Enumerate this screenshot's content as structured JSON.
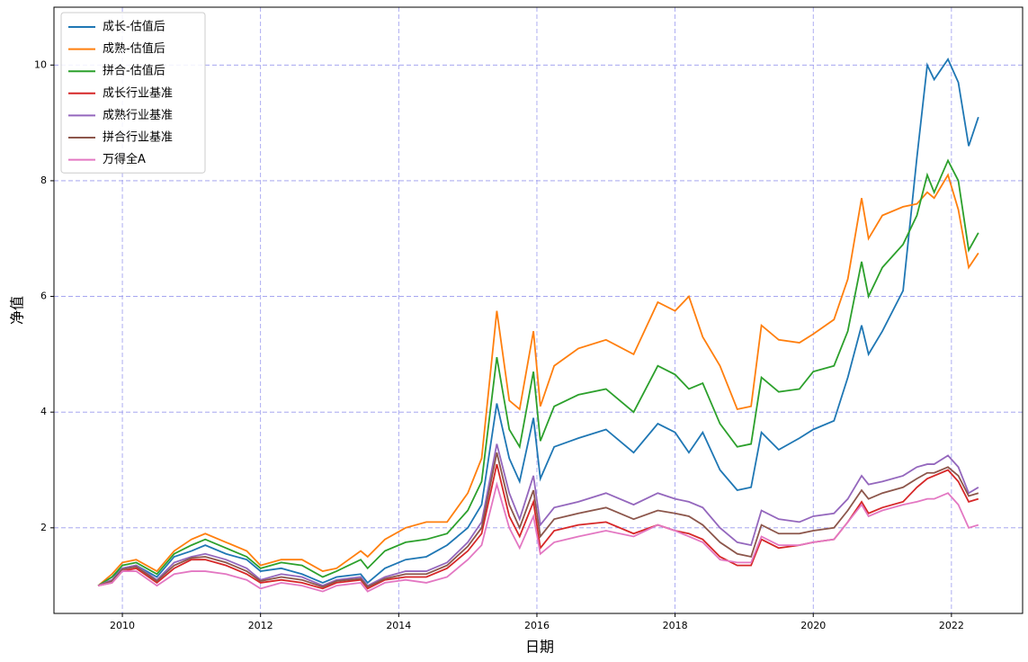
{
  "chart_data": {
    "type": "line",
    "x": [
      2009.65,
      2009.85,
      2010.0,
      2010.2,
      2010.5,
      2010.75,
      2011.0,
      2011.2,
      2011.5,
      2011.8,
      2012.0,
      2012.3,
      2012.6,
      2012.9,
      2013.1,
      2013.45,
      2013.55,
      2013.8,
      2014.1,
      2014.4,
      2014.7,
      2015.0,
      2015.2,
      2015.42,
      2015.6,
      2015.75,
      2015.95,
      2016.05,
      2016.25,
      2016.6,
      2017.0,
      2017.4,
      2017.75,
      2018.0,
      2018.2,
      2018.4,
      2018.65,
      2018.9,
      2019.1,
      2019.25,
      2019.5,
      2019.8,
      2020.0,
      2020.3,
      2020.5,
      2020.7,
      2020.8,
      2021.0,
      2021.3,
      2021.5,
      2021.65,
      2021.75,
      2021.95,
      2022.1,
      2022.25,
      2022.39
    ],
    "series": [
      {
        "name": "成长-估值后",
        "color": "#1f77b4",
        "values": [
          1.0,
          1.15,
          1.3,
          1.35,
          1.15,
          1.5,
          1.6,
          1.7,
          1.55,
          1.45,
          1.25,
          1.3,
          1.2,
          1.05,
          1.15,
          1.2,
          1.05,
          1.3,
          1.45,
          1.5,
          1.7,
          2.0,
          2.4,
          4.15,
          3.2,
          2.8,
          3.9,
          2.85,
          3.4,
          3.55,
          3.7,
          3.3,
          3.8,
          3.65,
          3.3,
          3.65,
          3.0,
          2.65,
          2.7,
          3.65,
          3.35,
          3.55,
          3.7,
          3.85,
          4.6,
          5.5,
          5.0,
          5.4,
          6.1,
          8.4,
          10.0,
          9.75,
          10.1,
          9.7,
          8.6,
          9.1
        ]
      },
      {
        "name": "成熟-估值后",
        "color": "#ff7f0e",
        "values": [
          1.0,
          1.2,
          1.4,
          1.45,
          1.25,
          1.6,
          1.8,
          1.9,
          1.75,
          1.6,
          1.35,
          1.45,
          1.45,
          1.25,
          1.3,
          1.6,
          1.5,
          1.8,
          2.0,
          2.1,
          2.1,
          2.6,
          3.2,
          5.75,
          4.2,
          4.05,
          5.4,
          4.1,
          4.8,
          5.1,
          5.25,
          5.0,
          5.9,
          5.75,
          6.0,
          5.3,
          4.8,
          4.05,
          4.1,
          5.5,
          5.25,
          5.2,
          5.35,
          5.6,
          6.3,
          7.7,
          7.0,
          7.4,
          7.55,
          7.6,
          7.8,
          7.7,
          8.1,
          7.5,
          6.5,
          6.75
        ]
      },
      {
        "name": "拼合-估值后",
        "color": "#2ca02c",
        "values": [
          1.0,
          1.15,
          1.35,
          1.4,
          1.2,
          1.55,
          1.7,
          1.8,
          1.65,
          1.5,
          1.3,
          1.4,
          1.35,
          1.15,
          1.25,
          1.45,
          1.3,
          1.6,
          1.75,
          1.8,
          1.9,
          2.3,
          2.8,
          4.95,
          3.7,
          3.4,
          4.7,
          3.5,
          4.1,
          4.3,
          4.4,
          4.0,
          4.8,
          4.65,
          4.4,
          4.5,
          3.8,
          3.4,
          3.45,
          4.6,
          4.35,
          4.4,
          4.7,
          4.8,
          5.4,
          6.6,
          6.0,
          6.5,
          6.9,
          7.4,
          8.1,
          7.8,
          8.35,
          8.0,
          6.8,
          7.1
        ]
      },
      {
        "name": "成长行业基准",
        "color": "#d62728",
        "values": [
          1.0,
          1.05,
          1.25,
          1.3,
          1.05,
          1.3,
          1.45,
          1.45,
          1.35,
          1.2,
          1.05,
          1.1,
          1.05,
          0.95,
          1.05,
          1.1,
          0.95,
          1.1,
          1.15,
          1.15,
          1.3,
          1.6,
          1.9,
          3.1,
          2.2,
          1.85,
          2.45,
          1.65,
          1.95,
          2.05,
          2.1,
          1.9,
          2.05,
          1.95,
          1.9,
          1.8,
          1.5,
          1.35,
          1.35,
          1.8,
          1.65,
          1.7,
          1.75,
          1.8,
          2.1,
          2.45,
          2.25,
          2.35,
          2.45,
          2.7,
          2.85,
          2.9,
          3.0,
          2.8,
          2.45,
          2.5
        ]
      },
      {
        "name": "成熟行业基准",
        "color": "#9467bd",
        "values": [
          1.0,
          1.1,
          1.3,
          1.35,
          1.1,
          1.4,
          1.5,
          1.55,
          1.45,
          1.3,
          1.1,
          1.2,
          1.15,
          1.0,
          1.1,
          1.15,
          1.0,
          1.15,
          1.25,
          1.25,
          1.4,
          1.75,
          2.1,
          3.45,
          2.6,
          2.15,
          2.9,
          2.05,
          2.35,
          2.45,
          2.6,
          2.4,
          2.6,
          2.5,
          2.45,
          2.35,
          2.0,
          1.75,
          1.7,
          2.3,
          2.15,
          2.1,
          2.2,
          2.25,
          2.5,
          2.9,
          2.75,
          2.8,
          2.9,
          3.05,
          3.1,
          3.1,
          3.25,
          3.05,
          2.6,
          2.7
        ]
      },
      {
        "name": "拼合行业基准",
        "color": "#8c564b",
        "values": [
          1.0,
          1.08,
          1.28,
          1.33,
          1.08,
          1.35,
          1.48,
          1.5,
          1.4,
          1.25,
          1.08,
          1.15,
          1.1,
          0.98,
          1.08,
          1.12,
          0.98,
          1.12,
          1.2,
          1.2,
          1.35,
          1.68,
          2.0,
          3.3,
          2.4,
          2.0,
          2.65,
          1.85,
          2.15,
          2.25,
          2.35,
          2.15,
          2.3,
          2.25,
          2.2,
          2.05,
          1.75,
          1.55,
          1.5,
          2.05,
          1.9,
          1.9,
          1.95,
          2.0,
          2.3,
          2.65,
          2.5,
          2.6,
          2.7,
          2.85,
          2.95,
          2.95,
          3.05,
          2.9,
          2.55,
          2.6
        ]
      },
      {
        "name": "万得全A",
        "color": "#e377c2",
        "values": [
          1.0,
          1.05,
          1.25,
          1.25,
          1.0,
          1.2,
          1.25,
          1.25,
          1.2,
          1.1,
          0.95,
          1.05,
          1.0,
          0.9,
          1.0,
          1.05,
          0.9,
          1.05,
          1.1,
          1.05,
          1.15,
          1.45,
          1.7,
          2.75,
          2.0,
          1.65,
          2.2,
          1.55,
          1.75,
          1.85,
          1.95,
          1.85,
          2.05,
          1.95,
          1.85,
          1.75,
          1.45,
          1.4,
          1.4,
          1.85,
          1.7,
          1.7,
          1.75,
          1.8,
          2.1,
          2.4,
          2.2,
          2.3,
          2.4,
          2.45,
          2.5,
          2.5,
          2.6,
          2.4,
          2.0,
          2.05
        ]
      }
    ],
    "x_label": "日期",
    "y_label": "净值",
    "xlim": [
      2009.01,
      2023.03
    ],
    "xticks": [
      2010,
      2012,
      2014,
      2016,
      2018,
      2020,
      2022
    ],
    "ylim": [
      0.52,
      11.0
    ],
    "yticks": [
      2,
      4,
      6,
      8,
      10
    ],
    "grid": true,
    "legend": "upper left"
  }
}
